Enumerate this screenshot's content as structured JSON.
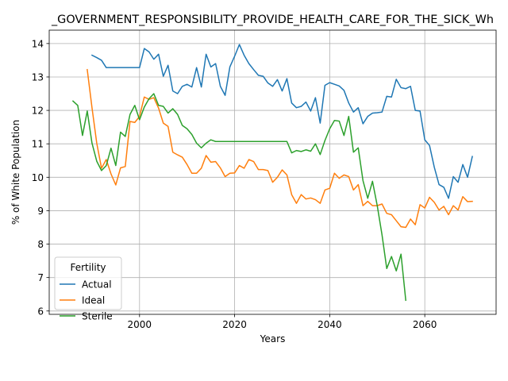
{
  "chart_data": {
    "type": "line",
    "title": "_GOVERNMENT_RESPONSIBILITY_PROVIDE_HEALTH_CARE_FOR_THE_SICK_Wh",
    "xlabel": "Years",
    "ylabel": "% of White Population",
    "xlim": [
      1981,
      2075
    ],
    "ylim": [
      5.9,
      14.4
    ],
    "xticks": [
      2000,
      2020,
      2040,
      2060
    ],
    "yticks": [
      6,
      7,
      8,
      9,
      10,
      11,
      12,
      13,
      14
    ],
    "grid": true,
    "legend": {
      "title": "Fertility",
      "placement": "lower-left"
    },
    "series": [
      {
        "name": "Actual",
        "color": "#1f77b4",
        "x": [
          1990,
          1991,
          1992,
          1993,
          1994,
          1995,
          1996,
          1997,
          1998,
          1999,
          2000,
          2001,
          2002,
          2003,
          2004,
          2005,
          2006,
          2007,
          2008,
          2009,
          2010,
          2011,
          2012,
          2013,
          2014,
          2015,
          2016,
          2017,
          2018,
          2019,
          2020,
          2021,
          2022,
          2023,
          2024,
          2025,
          2026,
          2027,
          2028,
          2029,
          2030,
          2031,
          2032,
          2033,
          2034,
          2035,
          2036,
          2037,
          2038,
          2039,
          2040,
          2041,
          2042,
          2043,
          2044,
          2045,
          2046,
          2047,
          2048,
          2049,
          2050,
          2051,
          2052,
          2053,
          2054,
          2055,
          2056,
          2057,
          2058,
          2059,
          2060,
          2061,
          2062,
          2063,
          2064,
          2065,
          2066,
          2067,
          2068,
          2069,
          2070
        ],
        "values": [
          13.65,
          13.58,
          13.5,
          13.28,
          13.28,
          13.28,
          13.28,
          13.28,
          13.28,
          13.28,
          13.28,
          13.85,
          13.75,
          13.53,
          13.68,
          13.02,
          13.35,
          12.58,
          12.5,
          12.72,
          12.78,
          12.7,
          13.28,
          12.7,
          13.68,
          13.3,
          13.4,
          12.72,
          12.45,
          13.3,
          13.62,
          13.97,
          13.65,
          13.4,
          13.22,
          13.05,
          13.02,
          12.82,
          12.72,
          12.92,
          12.58,
          12.95,
          12.22,
          12.08,
          12.12,
          12.25,
          11.98,
          12.38,
          11.62,
          12.75,
          12.83,
          12.78,
          12.73,
          12.6,
          12.22,
          11.95,
          12.08,
          11.6,
          11.82,
          11.92,
          11.93,
          11.95,
          12.42,
          12.4,
          12.93,
          12.68,
          12.65,
          12.72,
          12.0,
          11.98,
          11.12,
          10.95,
          10.3,
          9.78,
          9.7,
          9.37,
          10.02,
          9.85,
          10.38,
          10.0,
          10.62
        ]
      },
      {
        "name": "Ideal",
        "color": "#ff7f0e",
        "x": [
          1989,
          1990,
          1991,
          1992,
          1993,
          1994,
          1995,
          1996,
          1997,
          1998,
          1999,
          2000,
          2001,
          2002,
          2003,
          2004,
          2005,
          2006,
          2007,
          2008,
          2009,
          2010,
          2011,
          2012,
          2013,
          2014,
          2015,
          2016,
          2017,
          2018,
          2019,
          2020,
          2021,
          2022,
          2023,
          2024,
          2025,
          2026,
          2027,
          2028,
          2029,
          2030,
          2031,
          2032,
          2033,
          2034,
          2035,
          2036,
          2037,
          2038,
          2039,
          2040,
          2041,
          2042,
          2043,
          2044,
          2045,
          2046,
          2047,
          2048,
          2049,
          2050,
          2051,
          2052,
          2053,
          2054,
          2055,
          2056,
          2057,
          2058,
          2059,
          2060,
          2061,
          2062,
          2063,
          2064,
          2065,
          2066,
          2067,
          2068,
          2069,
          2070
        ],
        "values": [
          13.22,
          12.08,
          11.02,
          10.27,
          10.53,
          10.1,
          9.77,
          10.28,
          10.32,
          11.67,
          11.64,
          11.82,
          12.4,
          12.33,
          12.38,
          12.07,
          11.62,
          11.52,
          10.75,
          10.67,
          10.6,
          10.38,
          10.12,
          10.12,
          10.27,
          10.65,
          10.45,
          10.47,
          10.28,
          10.02,
          10.12,
          10.13,
          10.35,
          10.27,
          10.53,
          10.47,
          10.23,
          10.23,
          10.2,
          9.85,
          10.0,
          10.22,
          10.07,
          9.48,
          9.22,
          9.48,
          9.35,
          9.38,
          9.33,
          9.22,
          9.62,
          9.67,
          10.12,
          9.97,
          10.07,
          10.02,
          9.62,
          9.78,
          9.15,
          9.28,
          9.15,
          9.15,
          9.2,
          8.92,
          8.88,
          8.7,
          8.52,
          8.5,
          8.75,
          8.58,
          9.18,
          9.08,
          9.4,
          9.25,
          9.02,
          9.13,
          8.88,
          9.15,
          9.02,
          9.42,
          9.27,
          9.28
        ]
      },
      {
        "name": "Sterile",
        "color": "#2ca02c",
        "x": [
          1986,
          1987,
          1988,
          1989,
          1990,
          1991,
          1992,
          1993,
          1994,
          1995,
          1996,
          1997,
          1998,
          1999,
          2000,
          2001,
          2002,
          2003,
          2004,
          2005,
          2006,
          2007,
          2008,
          2009,
          2010,
          2011,
          2012,
          2013,
          2014,
          2015,
          2016,
          2017,
          2018,
          2019,
          2020,
          2021,
          2022,
          2023,
          2024,
          2025,
          2026,
          2027,
          2028,
          2029,
          2030,
          2031,
          2032,
          2033,
          2034,
          2035,
          2036,
          2037,
          2038,
          2039,
          2040,
          2041,
          2042,
          2043,
          2044,
          2045,
          2046,
          2047,
          2048,
          2049,
          2050,
          2051,
          2052,
          2053,
          2054,
          2055,
          2056
        ],
        "values": [
          12.28,
          12.15,
          11.25,
          11.98,
          11.02,
          10.48,
          10.2,
          10.35,
          10.87,
          10.35,
          11.35,
          11.22,
          11.88,
          12.15,
          11.72,
          12.1,
          12.35,
          12.5,
          12.15,
          12.12,
          11.92,
          12.05,
          11.88,
          11.55,
          11.45,
          11.28,
          11.02,
          10.88,
          11.02,
          11.12,
          11.07,
          11.07,
          11.07,
          11.07,
          11.07,
          11.07,
          11.07,
          11.07,
          11.07,
          11.07,
          11.07,
          11.07,
          11.07,
          11.07,
          11.07,
          11.07,
          10.73,
          10.8,
          10.77,
          10.82,
          10.78,
          11.0,
          10.68,
          11.1,
          11.45,
          11.7,
          11.68,
          11.25,
          11.82,
          10.75,
          10.88,
          9.9,
          9.37,
          9.88,
          9.15,
          8.28,
          7.27,
          7.63,
          7.2,
          7.7,
          6.32
        ]
      }
    ]
  }
}
